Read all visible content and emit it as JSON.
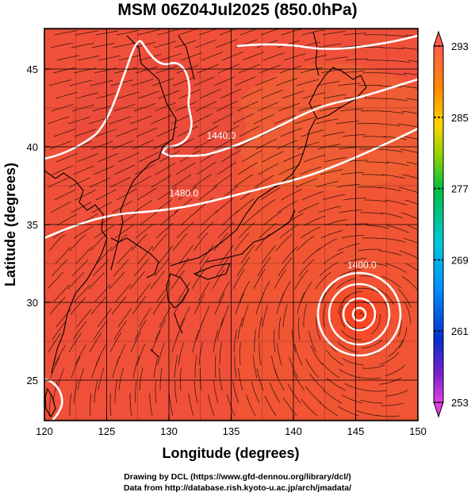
{
  "title": "MSM 06Z04Jul2025 (850.0hPa)",
  "credits": {
    "line1": "Drawing by DCL (https://www.gfd-dennou.org/library/dcl/)",
    "line2": "Data from http://database.rish.kyoto-u.ac.jp/arch/jmadata/"
  },
  "map": {
    "lon_range": [
      120,
      150
    ],
    "lat_range": [
      22.4,
      47.6
    ],
    "x_label": "Longitude (degrees)",
    "y_label": "Latitude  (degrees)",
    "x_ticks": [
      "120",
      "125",
      "130",
      "135",
      "140",
      "145",
      "150"
    ],
    "y_ticks": [
      "25",
      "30",
      "35",
      "40",
      "45"
    ],
    "x_tick_values": [
      120,
      125,
      130,
      135,
      140,
      145,
      150
    ],
    "y_tick_values": [
      25,
      30,
      35,
      40,
      45
    ],
    "grid": true,
    "contour_labels": [
      {
        "text": "1440.0",
        "lon": 134.2,
        "lat": 40.5
      },
      {
        "text": "1480.0",
        "lon": 131.2,
        "lat": 36.8
      },
      {
        "text": "1400.0",
        "lon": 145.5,
        "lat": 32.2
      }
    ],
    "typhoon_center": {
      "lon": 145.0,
      "lat": 30.0
    }
  },
  "colorbar": {
    "ticks": [
      "293",
      "285",
      "277",
      "269",
      "261",
      "253"
    ],
    "min": 253,
    "max": 293
  }
}
